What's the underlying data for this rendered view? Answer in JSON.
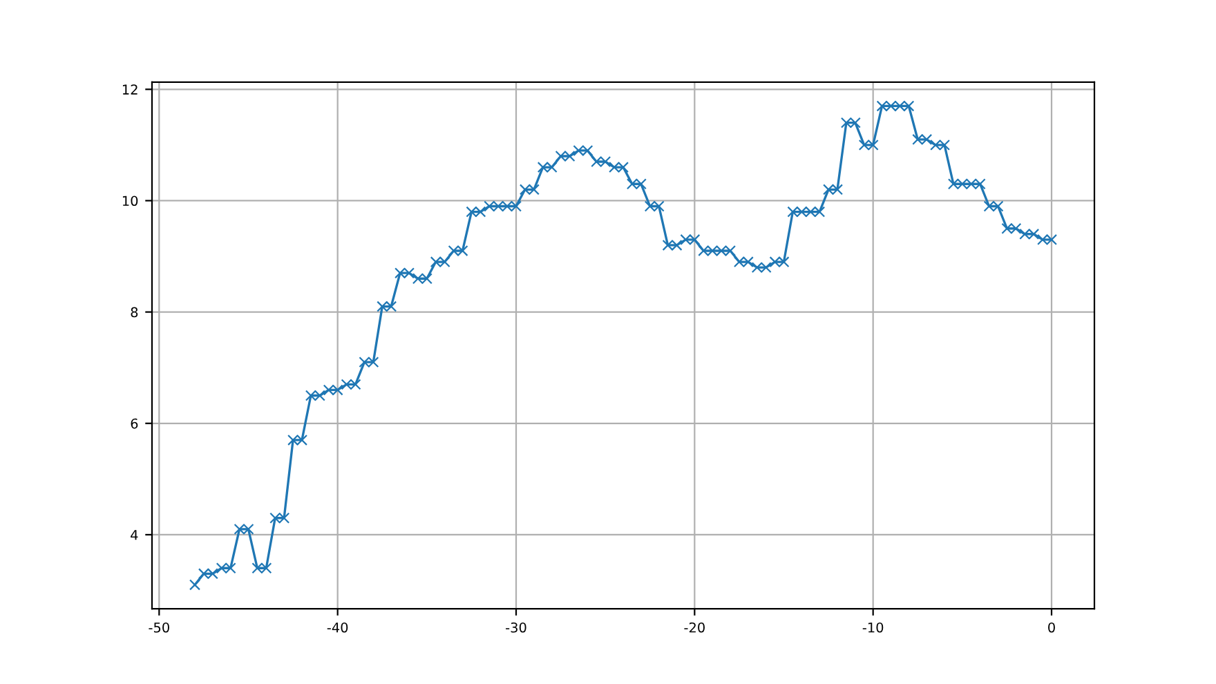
{
  "chart_data": {
    "type": "line",
    "x": [
      -48,
      -47.5,
      -47,
      -46.5,
      -46,
      -45.5,
      -45,
      -44.5,
      -44,
      -43.5,
      -43,
      -42.5,
      -42,
      -41.5,
      -41,
      -40.5,
      -40,
      -39.5,
      -39,
      -38.5,
      -38,
      -37.5,
      -37,
      -36.5,
      -36,
      -35.5,
      -35,
      -34.5,
      -34,
      -33.5,
      -33,
      -32.5,
      -32,
      -31.5,
      -31,
      -30.5,
      -30,
      -29.5,
      -29,
      -28.5,
      -28,
      -27.5,
      -27,
      -26.5,
      -26,
      -25.5,
      -25,
      -24.5,
      -24,
      -23.5,
      -23,
      -22.5,
      -22,
      -21.5,
      -21,
      -20.5,
      -20,
      -19.5,
      -19,
      -18.5,
      -18,
      -17.5,
      -17,
      -16.5,
      -16,
      -15.5,
      -15,
      -14.5,
      -14,
      -13.5,
      -13,
      -12.5,
      -12,
      -11.5,
      -11,
      -10.5,
      -10,
      -9.5,
      -9,
      -8.5,
      -8,
      -7.5,
      -7,
      -6.5,
      -6,
      -5.5,
      -5,
      -4.5,
      -4,
      -3.5,
      -3,
      -2.5,
      -2,
      -1.5,
      -1,
      -0.5,
      0
    ],
    "series": [
      {
        "color": "#1f77b4",
        "values": [
          3.1,
          3.3,
          3.3,
          3.4,
          3.4,
          4.1,
          4.1,
          3.4,
          3.4,
          4.3,
          4.3,
          5.7,
          5.7,
          6.5,
          6.5,
          6.6,
          6.6,
          6.7,
          6.7,
          7.1,
          7.1,
          8.1,
          8.1,
          8.7,
          8.7,
          8.6,
          8.6,
          8.9,
          8.9,
          9.1,
          9.1,
          9.8,
          9.8,
          9.9,
          9.9,
          9.9,
          9.9,
          10.2,
          10.2,
          10.6,
          10.6,
          10.8,
          10.8,
          10.9,
          10.9,
          10.7,
          10.7,
          10.6,
          10.6,
          10.3,
          10.3,
          9.9,
          9.9,
          9.2,
          9.2,
          9.3,
          9.3,
          9.1,
          9.1,
          9.1,
          9.1,
          8.9,
          8.9,
          8.8,
          8.8,
          8.9,
          8.9,
          9.8,
          9.8,
          9.8,
          9.8,
          10.2,
          10.2,
          11.4,
          11.4,
          11.0,
          11.0,
          11.7,
          11.7,
          11.7,
          11.7,
          11.1,
          11.1,
          11.0,
          11.0,
          10.3,
          10.3,
          10.3,
          10.3,
          9.9,
          9.9,
          9.5,
          9.5,
          9.4,
          9.4,
          9.3,
          9.3
        ]
      }
    ],
    "xlim": [
      -50.4,
      2.4
    ],
    "ylim": [
      2.67,
      12.13
    ],
    "xticks": [
      -50,
      -40,
      -30,
      -20,
      -10,
      0
    ],
    "yticks": [
      4,
      6,
      8,
      10,
      12
    ],
    "grid": true,
    "marker": "cross",
    "line_style": "solid"
  }
}
